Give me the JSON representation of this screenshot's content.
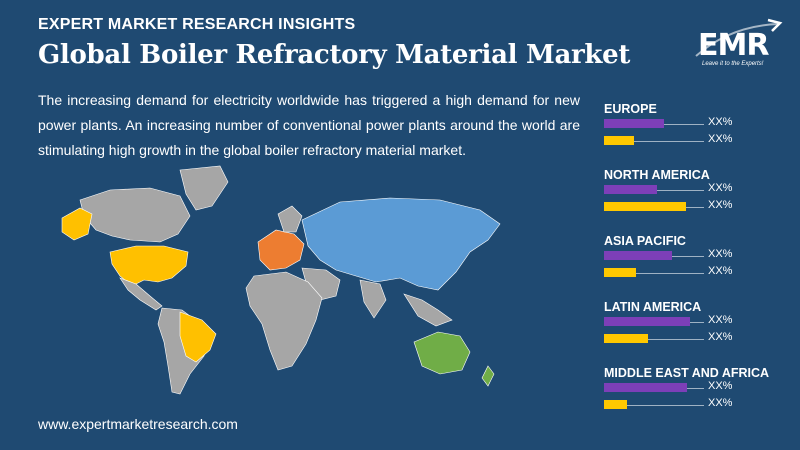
{
  "header": {
    "kicker": "EXPERT MARKET RESEARCH INSIGHTS",
    "title": "Global Boiler Refractory Material Market"
  },
  "description": "The increasing demand for electricity worldwide has triggered a high demand for new power plants. An increasing number of conventional power plants around the world are stimulating high growth in the global boiler refractory material market.",
  "logo": {
    "text": "EMR",
    "tagline": "Leave it to the Experts!"
  },
  "footer": {
    "url": "www.expertmarketresearch.com"
  },
  "colors": {
    "background": "#1f4a72",
    "purple_bar": "#7d3fb8",
    "yellow_bar": "#ffc800",
    "map_blue": "#5b9bd5",
    "map_orange": "#ed7d31",
    "map_yellow": "#ffc000",
    "map_green": "#70ad47",
    "map_grey": "#a6a6a6"
  },
  "regions": [
    {
      "name": "EUROPE",
      "purple": 0.6,
      "yellow": 0.3,
      "purple_label": "XX%",
      "yellow_label": "XX%"
    },
    {
      "name": "NORTH AMERICA",
      "purple": 0.53,
      "yellow": 0.82,
      "purple_label": "XX%",
      "yellow_label": "XX%"
    },
    {
      "name": "ASIA PACIFIC",
      "purple": 0.68,
      "yellow": 0.32,
      "purple_label": "XX%",
      "yellow_label": "XX%"
    },
    {
      "name": "LATIN AMERICA",
      "purple": 0.86,
      "yellow": 0.44,
      "purple_label": "XX%",
      "yellow_label": "XX%"
    },
    {
      "name": "MIDDLE EAST AND AFRICA",
      "purple": 0.83,
      "yellow": 0.23,
      "purple_label": "XX%",
      "yellow_label": "XX%"
    }
  ]
}
